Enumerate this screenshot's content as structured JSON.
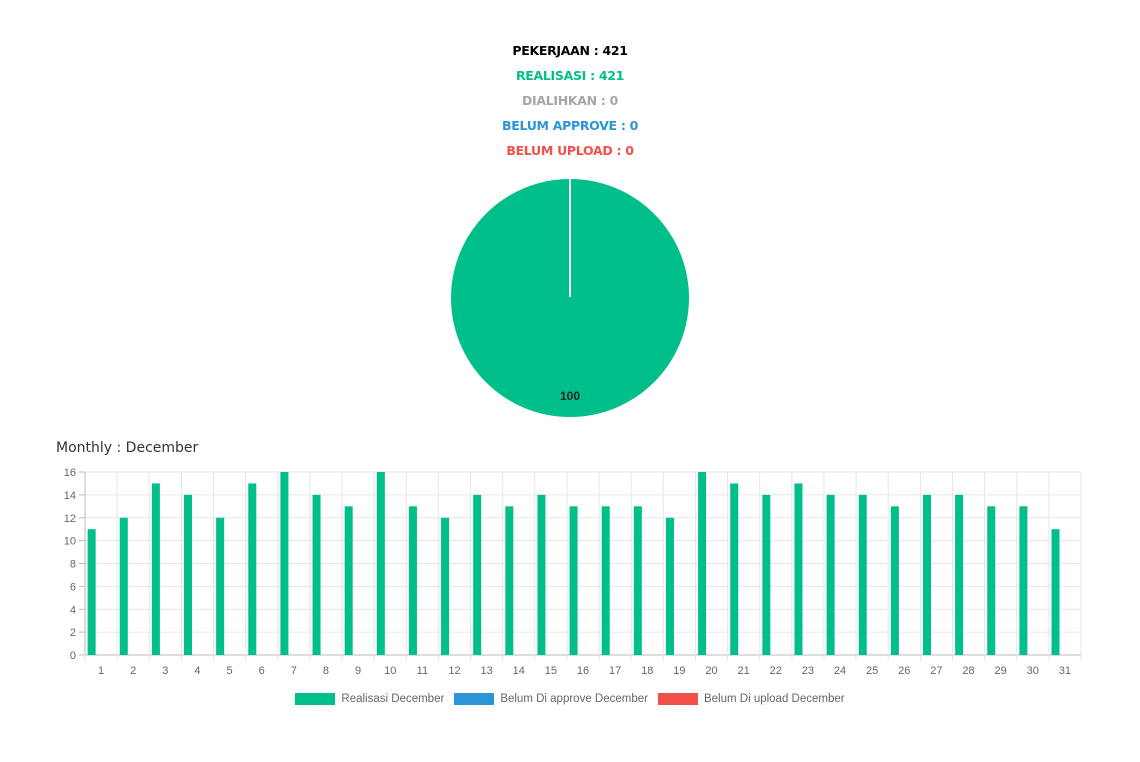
{
  "summary": {
    "pekerjaan": "PEKERJAAN : 421",
    "realisasi": "REALISASI : 421",
    "dialihkan": "DIALIHKAN : 0",
    "belum_approve": "BELUM APPROVE : 0",
    "belum_upload": "BELUM UPLOAD : 0"
  },
  "colors": {
    "black": "#000000",
    "green": "#00BF8A",
    "grey": "#A6A6A6",
    "blue": "#2B95D8",
    "red": "#F2504B"
  },
  "monthly_title": "Monthly : December",
  "chart_data": [
    {
      "type": "pie",
      "slices": [
        {
          "name": "Realisasi",
          "value": 421,
          "color": "#00BF8A"
        },
        {
          "name": "Belum Approve",
          "value": 0,
          "color": "#2B95D8"
        },
        {
          "name": "Belum Upload",
          "value": 0,
          "color": "#F2504B"
        }
      ],
      "data_label": "100"
    },
    {
      "type": "bar",
      "categories": [
        "1",
        "2",
        "3",
        "4",
        "5",
        "6",
        "7",
        "8",
        "9",
        "10",
        "11",
        "12",
        "13",
        "14",
        "15",
        "16",
        "17",
        "18",
        "19",
        "20",
        "21",
        "22",
        "23",
        "24",
        "25",
        "26",
        "27",
        "28",
        "29",
        "30",
        "31"
      ],
      "series": [
        {
          "name": "Realisasi December",
          "color": "#00BF8A",
          "values": [
            11,
            12,
            15,
            14,
            12,
            15,
            16,
            14,
            13,
            16,
            13,
            12,
            14,
            13,
            14,
            13,
            13,
            13,
            12,
            16,
            15,
            14,
            15,
            14,
            14,
            13,
            14,
            14,
            13,
            13,
            11
          ]
        },
        {
          "name": "Belum Di approve December",
          "color": "#2B95D8",
          "values": [
            0,
            0,
            0,
            0,
            0,
            0,
            0,
            0,
            0,
            0,
            0,
            0,
            0,
            0,
            0,
            0,
            0,
            0,
            0,
            0,
            0,
            0,
            0,
            0,
            0,
            0,
            0,
            0,
            0,
            0,
            0
          ]
        },
        {
          "name": "Belum Di upload December",
          "color": "#F2504B",
          "values": [
            0,
            0,
            0,
            0,
            0,
            0,
            0,
            0,
            0,
            0,
            0,
            0,
            0,
            0,
            0,
            0,
            0,
            0,
            0,
            0,
            0,
            0,
            0,
            0,
            0,
            0,
            0,
            0,
            0,
            0,
            0
          ]
        }
      ],
      "yticks": [
        0,
        2,
        4,
        6,
        8,
        10,
        12,
        14,
        16
      ],
      "ylim": [
        0,
        16
      ],
      "grid": true,
      "legend_position": "bottom"
    }
  ]
}
